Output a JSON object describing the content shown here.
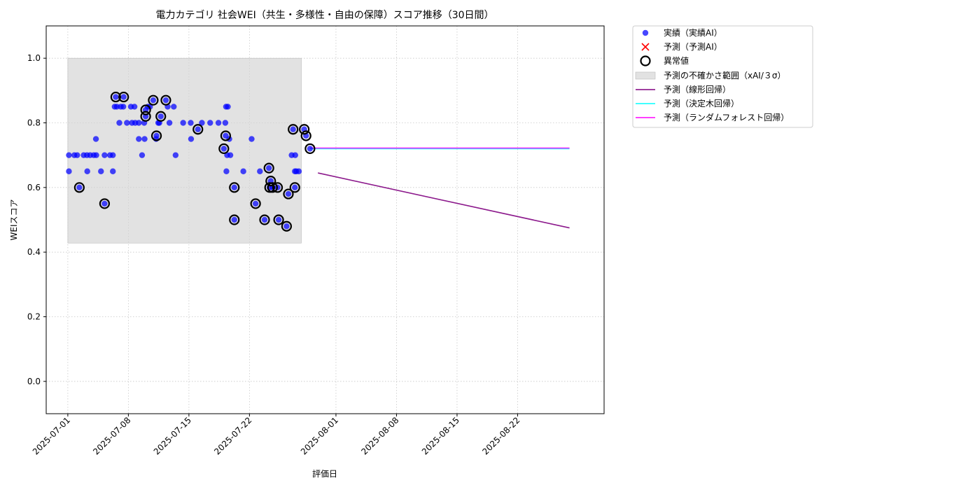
{
  "chart_data": {
    "type": "scatter",
    "title": "電力カテゴリ 社会WEI（共生・多様性・自由の保障）スコア推移（30日間）",
    "xlabel": "評価日",
    "ylabel": "WEIスコア",
    "x_ticks": [
      "2025-07-01",
      "2025-07-08",
      "2025-07-15",
      "2025-07-22",
      "2025-08-01",
      "2025-08-08",
      "2025-08-15",
      "2025-08-22"
    ],
    "xlim": [
      "2025-06-28T12:00",
      "2025-09-01T00:00"
    ],
    "ylim": [
      -0.1,
      1.1
    ],
    "y_ticks": [
      0.0,
      0.2,
      0.4,
      0.6,
      0.8,
      1.0
    ],
    "grid": true,
    "legend_position": "outside-upper-right",
    "colors": {
      "actual": "#0000ff",
      "forecast_marker": "#ff0000",
      "uncertainty": "#d3d3d3",
      "linear": "#800080",
      "tree": "#00ffff",
      "forest": "#ff00ff",
      "anomaly": "#000000"
    },
    "uncertainty_band": {
      "x": [
        "2025-07-01",
        "2025-07-28"
      ],
      "y": [
        0.428,
        1.0
      ]
    },
    "series": [
      {
        "name": "実績（実績AI）",
        "kind": "scatter",
        "points": [
          [
            "2025-07-01 03:00",
            0.7
          ],
          [
            "2025-07-01 03:00",
            0.65
          ],
          [
            "2025-07-01 18:00",
            0.7
          ],
          [
            "2025-07-02 02:00",
            0.7
          ],
          [
            "2025-07-02 08:00",
            0.6
          ],
          [
            "2025-07-02 20:00",
            0.7
          ],
          [
            "2025-07-03 05:00",
            0.7
          ],
          [
            "2025-07-03 06:00",
            0.65
          ],
          [
            "2025-07-03 14:00",
            0.7
          ],
          [
            "2025-07-04 00:00",
            0.7
          ],
          [
            "2025-07-04 06:00",
            0.75
          ],
          [
            "2025-07-04 07:00",
            0.7
          ],
          [
            "2025-07-04 20:00",
            0.65
          ],
          [
            "2025-07-05 06:00",
            0.55
          ],
          [
            "2025-07-05 06:00",
            0.7
          ],
          [
            "2025-07-05 21:00",
            0.7
          ],
          [
            "2025-07-06 05:00",
            0.7
          ],
          [
            "2025-07-06 05:00",
            0.65
          ],
          [
            "2025-07-06 10:00",
            0.85
          ],
          [
            "2025-07-06 13:00",
            0.88
          ],
          [
            "2025-07-06 16:00",
            0.85
          ],
          [
            "2025-07-06 23:00",
            0.8
          ],
          [
            "2025-07-07 03:00",
            0.85
          ],
          [
            "2025-07-07 10:00",
            0.85
          ],
          [
            "2025-07-07 11:00",
            0.88
          ],
          [
            "2025-07-07 20:00",
            0.8
          ],
          [
            "2025-07-08 07:00",
            0.85
          ],
          [
            "2025-07-08 10:00",
            0.8
          ],
          [
            "2025-07-08 17:00",
            0.85
          ],
          [
            "2025-07-08 19:00",
            0.8
          ],
          [
            "2025-07-09 05:00",
            0.75
          ],
          [
            "2025-07-09 05:00",
            0.8
          ],
          [
            "2025-07-09 14:00",
            0.7
          ],
          [
            "2025-07-09 20:00",
            0.8
          ],
          [
            "2025-07-09 21:00",
            0.75
          ],
          [
            "2025-07-10 00:00",
            0.82
          ],
          [
            "2025-07-10 00:00",
            0.84
          ],
          [
            "2025-07-10 06:00",
            0.85
          ],
          [
            "2025-07-10 12:00",
            0.85
          ],
          [
            "2025-07-10 21:00",
            0.87
          ],
          [
            "2025-07-11 06:00",
            0.76
          ],
          [
            "2025-07-11 05:00",
            0.75
          ],
          [
            "2025-07-11 11:00",
            0.8
          ],
          [
            "2025-07-11 18:00",
            0.82
          ],
          [
            "2025-07-11 14:00",
            0.8
          ],
          [
            "2025-07-12 08:00",
            0.87
          ],
          [
            "2025-07-12 13:00",
            0.85
          ],
          [
            "2025-07-12 18:00",
            0.8
          ],
          [
            "2025-07-13 06:00",
            0.85
          ],
          [
            "2025-07-13 11:00",
            0.7
          ],
          [
            "2025-07-14 08:00",
            0.8
          ],
          [
            "2025-07-15 06:00",
            0.75
          ],
          [
            "2025-07-15 05:00",
            0.8
          ],
          [
            "2025-07-16 01:00",
            0.78
          ],
          [
            "2025-07-16 12:00",
            0.8
          ],
          [
            "2025-07-17 11:00",
            0.8
          ],
          [
            "2025-07-18 10:00",
            0.8
          ],
          [
            "2025-07-19 07:00",
            0.85
          ],
          [
            "2025-07-19 12:00",
            0.85
          ],
          [
            "2025-07-19 05:00",
            0.8
          ],
          [
            "2025-07-19 01:00",
            0.72
          ],
          [
            "2025-07-19 06:00",
            0.76
          ],
          [
            "2025-07-19 10:00",
            0.7
          ],
          [
            "2025-07-19 08:00",
            0.65
          ],
          [
            "2025-07-19 19:00",
            0.7
          ],
          [
            "2025-07-19 16:00",
            0.75
          ],
          [
            "2025-07-20 06:00",
            0.6
          ],
          [
            "2025-07-20 06:00",
            0.5
          ],
          [
            "2025-07-21 07:00",
            0.65
          ],
          [
            "2025-07-22 06:00",
            0.75
          ],
          [
            "2025-07-22 17:00",
            0.55
          ],
          [
            "2025-07-23 05:00",
            0.65
          ],
          [
            "2025-07-23 18:00",
            0.5
          ],
          [
            "2025-07-24 08:00",
            0.6
          ],
          [
            "2025-07-24 06:00",
            0.66
          ],
          [
            "2025-07-24 11:00",
            0.62
          ],
          [
            "2025-07-24 16:00",
            0.6
          ],
          [
            "2025-07-25 06:00",
            0.6
          ],
          [
            "2025-07-25 09:00",
            0.5
          ],
          [
            "2025-07-26 07:00",
            0.48
          ],
          [
            "2025-07-26 12:00",
            0.58
          ],
          [
            "2025-07-27 06:00",
            0.6
          ],
          [
            "2025-07-27 06:00",
            0.65
          ],
          [
            "2025-07-27 07:00",
            0.7
          ],
          [
            "2025-07-26 21:00",
            0.7
          ],
          [
            "2025-07-27 10:00",
            0.65
          ],
          [
            "2025-07-27 01:00",
            0.78
          ],
          [
            "2025-07-27 17:00",
            0.65
          ],
          [
            "2025-07-28 08:00",
            0.78
          ],
          [
            "2025-07-28 13:00",
            0.76
          ],
          [
            "2025-07-29 00:00",
            0.72
          ]
        ]
      },
      {
        "name": "予測（予測AI）",
        "kind": "scatter",
        "points": []
      },
      {
        "name": "異常値",
        "kind": "anomaly",
        "points": [
          [
            "2025-07-02 08:00",
            0.6
          ],
          [
            "2025-07-05 06:00",
            0.55
          ],
          [
            "2025-07-06 13:00",
            0.88
          ],
          [
            "2025-07-07 11:00",
            0.88
          ],
          [
            "2025-07-10 00:00",
            0.82
          ],
          [
            "2025-07-10 00:00",
            0.84
          ],
          [
            "2025-07-10 21:00",
            0.87
          ],
          [
            "2025-07-11 06:00",
            0.76
          ],
          [
            "2025-07-11 18:00",
            0.82
          ],
          [
            "2025-07-12 08:00",
            0.87
          ],
          [
            "2025-07-16 01:00",
            0.78
          ],
          [
            "2025-07-19 01:00",
            0.72
          ],
          [
            "2025-07-19 06:00",
            0.76
          ],
          [
            "2025-07-20 06:00",
            0.6
          ],
          [
            "2025-07-20 06:00",
            0.5
          ],
          [
            "2025-07-22 17:00",
            0.55
          ],
          [
            "2025-07-23 18:00",
            0.5
          ],
          [
            "2025-07-24 06:00",
            0.66
          ],
          [
            "2025-07-24 11:00",
            0.62
          ],
          [
            "2025-07-24 08:00",
            0.6
          ],
          [
            "2025-07-24 16:00",
            0.6
          ],
          [
            "2025-07-25 06:00",
            0.6
          ],
          [
            "2025-07-25 09:00",
            0.5
          ],
          [
            "2025-07-26 07:00",
            0.48
          ],
          [
            "2025-07-26 12:00",
            0.58
          ],
          [
            "2025-07-27 01:00",
            0.78
          ],
          [
            "2025-07-27 06:00",
            0.6
          ],
          [
            "2025-07-28 08:00",
            0.78
          ],
          [
            "2025-07-28 13:00",
            0.76
          ],
          [
            "2025-07-29 00:00",
            0.72
          ]
        ]
      },
      {
        "name": "予測の不確かさ範囲（xAI/３σ）",
        "kind": "band"
      },
      {
        "name": "予測（線形回帰）",
        "kind": "line",
        "points": [
          [
            "2025-07-29 22:00",
            0.645
          ],
          [
            "2025-08-28 00:00",
            0.475
          ]
        ]
      },
      {
        "name": "予測（決定木回帰）",
        "kind": "line",
        "points": [
          [
            "2025-07-29 00:00",
            0.72
          ],
          [
            "2025-08-28 00:00",
            0.72
          ]
        ]
      },
      {
        "name": "予測（ランダムフォレスト回帰）",
        "kind": "line",
        "points": [
          [
            "2025-07-29 00:00",
            0.722
          ],
          [
            "2025-08-28 00:00",
            0.722
          ]
        ]
      }
    ]
  }
}
